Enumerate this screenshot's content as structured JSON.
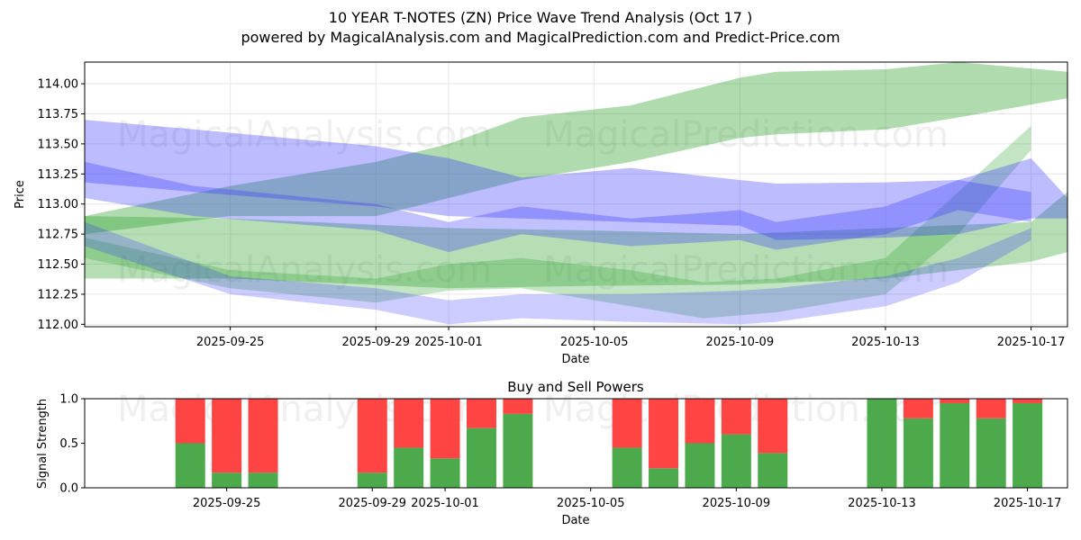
{
  "colors": {
    "green_band": "#2ca02c",
    "blue_band": "#3333ff",
    "buy": "#4caa4c",
    "sell": "#ff4444",
    "grid": "#e6e6e6"
  },
  "figure": {
    "title_line1": "10 YEAR T-NOTES (ZN) Price Wave Trend Analysis (Oct 17 )",
    "title_line2": "powered by MagicalAnalysis.com and MagicalPrediction.com and Predict-Price.com",
    "watermarks": [
      "MagicalAnalysis.com",
      "MagicalPrediction.com"
    ]
  },
  "chart_data": [
    {
      "type": "area",
      "name": "price-wave-chart",
      "xlabel": "Date",
      "ylabel": "Price",
      "xlim": [
        "2025-09-21",
        "2025-10-18"
      ],
      "ylim": [
        111.98,
        114.18
      ],
      "grid": true,
      "xticks": [
        "2025-09-25",
        "2025-09-29",
        "2025-10-01",
        "2025-10-05",
        "2025-10-09",
        "2025-10-13",
        "2025-10-17"
      ],
      "yticks": [
        "112.00",
        "112.25",
        "112.50",
        "112.75",
        "113.00",
        "113.25",
        "113.50",
        "113.75",
        "114.00"
      ],
      "series": [
        {
          "name": "green-wave-upper",
          "color": "green",
          "opacity": 0.38,
          "points": [
            [
              "2025-09-21",
              112.9
            ],
            [
              "2025-09-25",
              113.15
            ],
            [
              "2025-09-29",
              113.35
            ],
            [
              "2025-10-01",
              113.5
            ],
            [
              "2025-10-03",
              113.72
            ],
            [
              "2025-10-06",
              113.82
            ],
            [
              "2025-10-09",
              114.05
            ],
            [
              "2025-10-10",
              114.1
            ],
            [
              "2025-10-13",
              114.12
            ],
            [
              "2025-10-15",
              114.18
            ],
            [
              "2025-10-18",
              114.1
            ]
          ],
          "lower": [
            [
              "2025-09-21",
              112.75
            ],
            [
              "2025-09-25",
              112.9
            ],
            [
              "2025-09-29",
              112.9
            ],
            [
              "2025-10-01",
              113.05
            ],
            [
              "2025-10-03",
              113.2
            ],
            [
              "2025-10-06",
              113.35
            ],
            [
              "2025-10-09",
              113.55
            ],
            [
              "2025-10-10",
              113.58
            ],
            [
              "2025-10-13",
              113.62
            ],
            [
              "2025-10-15",
              113.72
            ],
            [
              "2025-10-18",
              113.88
            ]
          ]
        },
        {
          "name": "green-wave-flat",
          "color": "green",
          "opacity": 0.35,
          "points": [
            [
              "2025-09-21",
              112.9
            ],
            [
              "2025-09-25",
              112.88
            ],
            [
              "2025-10-01",
              112.8
            ],
            [
              "2025-10-05",
              112.78
            ],
            [
              "2025-10-09",
              112.75
            ],
            [
              "2025-10-13",
              112.8
            ],
            [
              "2025-10-17",
              112.85
            ],
            [
              "2025-10-18",
              113.1
            ]
          ],
          "lower": [
            [
              "2025-09-21",
              112.38
            ],
            [
              "2025-09-25",
              112.38
            ],
            [
              "2025-10-01",
              112.3
            ],
            [
              "2025-10-05",
              112.32
            ],
            [
              "2025-10-09",
              112.33
            ],
            [
              "2025-10-13",
              112.38
            ],
            [
              "2025-10-17",
              112.52
            ],
            [
              "2025-10-18",
              112.6
            ]
          ]
        },
        {
          "name": "green-wave-lower",
          "color": "green",
          "opacity": 0.28,
          "points": [
            [
              "2025-09-21",
              112.72
            ],
            [
              "2025-09-25",
              112.45
            ],
            [
              "2025-09-29",
              112.38
            ],
            [
              "2025-10-01",
              112.5
            ],
            [
              "2025-10-03",
              112.55
            ],
            [
              "2025-10-06",
              112.45
            ],
            [
              "2025-10-08",
              112.35
            ],
            [
              "2025-10-10",
              112.38
            ],
            [
              "2025-10-13",
              112.55
            ],
            [
              "2025-10-15",
              113.1
            ],
            [
              "2025-10-17",
              113.65
            ]
          ],
          "lower": [
            [
              "2025-09-21",
              112.55
            ],
            [
              "2025-09-25",
              112.3
            ],
            [
              "2025-09-29",
              112.18
            ],
            [
              "2025-10-01",
              112.28
            ],
            [
              "2025-10-03",
              112.3
            ],
            [
              "2025-10-06",
              112.15
            ],
            [
              "2025-10-08",
              112.05
            ],
            [
              "2025-10-10",
              112.1
            ],
            [
              "2025-10-13",
              112.25
            ],
            [
              "2025-10-15",
              112.75
            ],
            [
              "2025-10-17",
              113.45
            ]
          ]
        },
        {
          "name": "blue-wave-upper",
          "color": "blue",
          "opacity": 0.33,
          "points": [
            [
              "2025-09-21",
              113.7
            ],
            [
              "2025-09-24",
              113.62
            ],
            [
              "2025-09-29",
              113.48
            ],
            [
              "2025-10-01",
              113.38
            ],
            [
              "2025-10-03",
              113.22
            ],
            [
              "2025-10-06",
              113.3
            ],
            [
              "2025-10-09",
              113.2
            ],
            [
              "2025-10-10",
              113.17
            ],
            [
              "2025-10-13",
              113.18
            ],
            [
              "2025-10-15",
              113.2
            ],
            [
              "2025-10-17",
              113.38
            ],
            [
              "2025-10-18",
              113.05
            ]
          ],
          "lower": [
            [
              "2025-09-21",
              113.18
            ],
            [
              "2025-09-24",
              113.1
            ],
            [
              "2025-09-29",
              112.98
            ],
            [
              "2025-10-01",
              112.9
            ],
            [
              "2025-10-03",
              112.88
            ],
            [
              "2025-10-06",
              112.85
            ],
            [
              "2025-10-09",
              112.82
            ],
            [
              "2025-10-10",
              112.7
            ],
            [
              "2025-10-13",
              112.72
            ],
            [
              "2025-10-15",
              112.75
            ],
            [
              "2025-10-17",
              112.88
            ],
            [
              "2025-10-18",
              112.88
            ]
          ]
        },
        {
          "name": "blue-wave-middle",
          "color": "blue",
          "opacity": 0.3,
          "points": [
            [
              "2025-09-21",
              113.35
            ],
            [
              "2025-09-24",
              113.15
            ],
            [
              "2025-09-29",
              113.0
            ],
            [
              "2025-10-01",
              112.85
            ],
            [
              "2025-10-03",
              112.98
            ],
            [
              "2025-10-06",
              112.88
            ],
            [
              "2025-10-09",
              112.95
            ],
            [
              "2025-10-10",
              112.85
            ],
            [
              "2025-10-13",
              112.98
            ],
            [
              "2025-10-15",
              113.2
            ],
            [
              "2025-10-17",
              113.1
            ]
          ],
          "lower": [
            [
              "2025-09-21",
              113.05
            ],
            [
              "2025-09-24",
              112.9
            ],
            [
              "2025-09-29",
              112.78
            ],
            [
              "2025-10-01",
              112.6
            ],
            [
              "2025-10-03",
              112.75
            ],
            [
              "2025-10-06",
              112.65
            ],
            [
              "2025-10-09",
              112.7
            ],
            [
              "2025-10-10",
              112.62
            ],
            [
              "2025-10-13",
              112.75
            ],
            [
              "2025-10-15",
              112.95
            ],
            [
              "2025-10-17",
              112.85
            ]
          ]
        },
        {
          "name": "blue-wave-lower",
          "color": "blue",
          "opacity": 0.25,
          "points": [
            [
              "2025-09-21",
              112.85
            ],
            [
              "2025-09-25",
              112.4
            ],
            [
              "2025-09-29",
              112.3
            ],
            [
              "2025-10-01",
              112.2
            ],
            [
              "2025-10-03",
              112.25
            ],
            [
              "2025-10-06",
              112.25
            ],
            [
              "2025-10-09",
              112.28
            ],
            [
              "2025-10-10",
              112.3
            ],
            [
              "2025-10-13",
              112.4
            ],
            [
              "2025-10-15",
              112.55
            ],
            [
              "2025-10-17",
              112.8
            ]
          ],
          "lower": [
            [
              "2025-09-21",
              112.65
            ],
            [
              "2025-09-25",
              112.25
            ],
            [
              "2025-09-29",
              112.12
            ],
            [
              "2025-10-01",
              112.0
            ],
            [
              "2025-10-03",
              112.05
            ],
            [
              "2025-10-06",
              112.02
            ],
            [
              "2025-10-09",
              112.0
            ],
            [
              "2025-10-10",
              112.02
            ],
            [
              "2025-10-13",
              112.15
            ],
            [
              "2025-10-15",
              112.35
            ],
            [
              "2025-10-17",
              112.7
            ]
          ]
        }
      ]
    },
    {
      "type": "bar",
      "name": "buy-sell-powers",
      "title": "Buy and Sell Powers",
      "xlabel": "Date",
      "ylabel": "Signal Strength",
      "ylim": [
        0,
        1
      ],
      "yticks": [
        "0.0",
        "0.5",
        "1.0"
      ],
      "xticks": [
        "2025-09-25",
        "2025-09-29",
        "2025-10-01",
        "2025-10-05",
        "2025-10-09",
        "2025-10-13",
        "2025-10-17"
      ],
      "categories": [
        "2025-09-24",
        "2025-09-25",
        "2025-09-26",
        "2025-09-29",
        "2025-09-30",
        "2025-10-01",
        "2025-10-02",
        "2025-10-03",
        "2025-10-06",
        "2025-10-07",
        "2025-10-08",
        "2025-10-09",
        "2025-10-10",
        "2025-10-13",
        "2025-10-14",
        "2025-10-15",
        "2025-10-16",
        "2025-10-17"
      ],
      "series": [
        {
          "name": "Buy",
          "values": [
            0.5,
            0.17,
            0.17,
            0.17,
            0.45,
            0.33,
            0.67,
            0.83,
            0.45,
            0.22,
            0.5,
            0.6,
            0.39,
            1.0,
            0.78,
            0.95,
            0.78,
            0.95
          ]
        },
        {
          "name": "Sell",
          "values": [
            0.5,
            0.83,
            0.83,
            0.83,
            0.55,
            0.67,
            0.33,
            0.17,
            0.55,
            0.78,
            0.5,
            0.4,
            0.61,
            0.0,
            0.22,
            0.05,
            0.22,
            0.05
          ]
        }
      ]
    }
  ]
}
